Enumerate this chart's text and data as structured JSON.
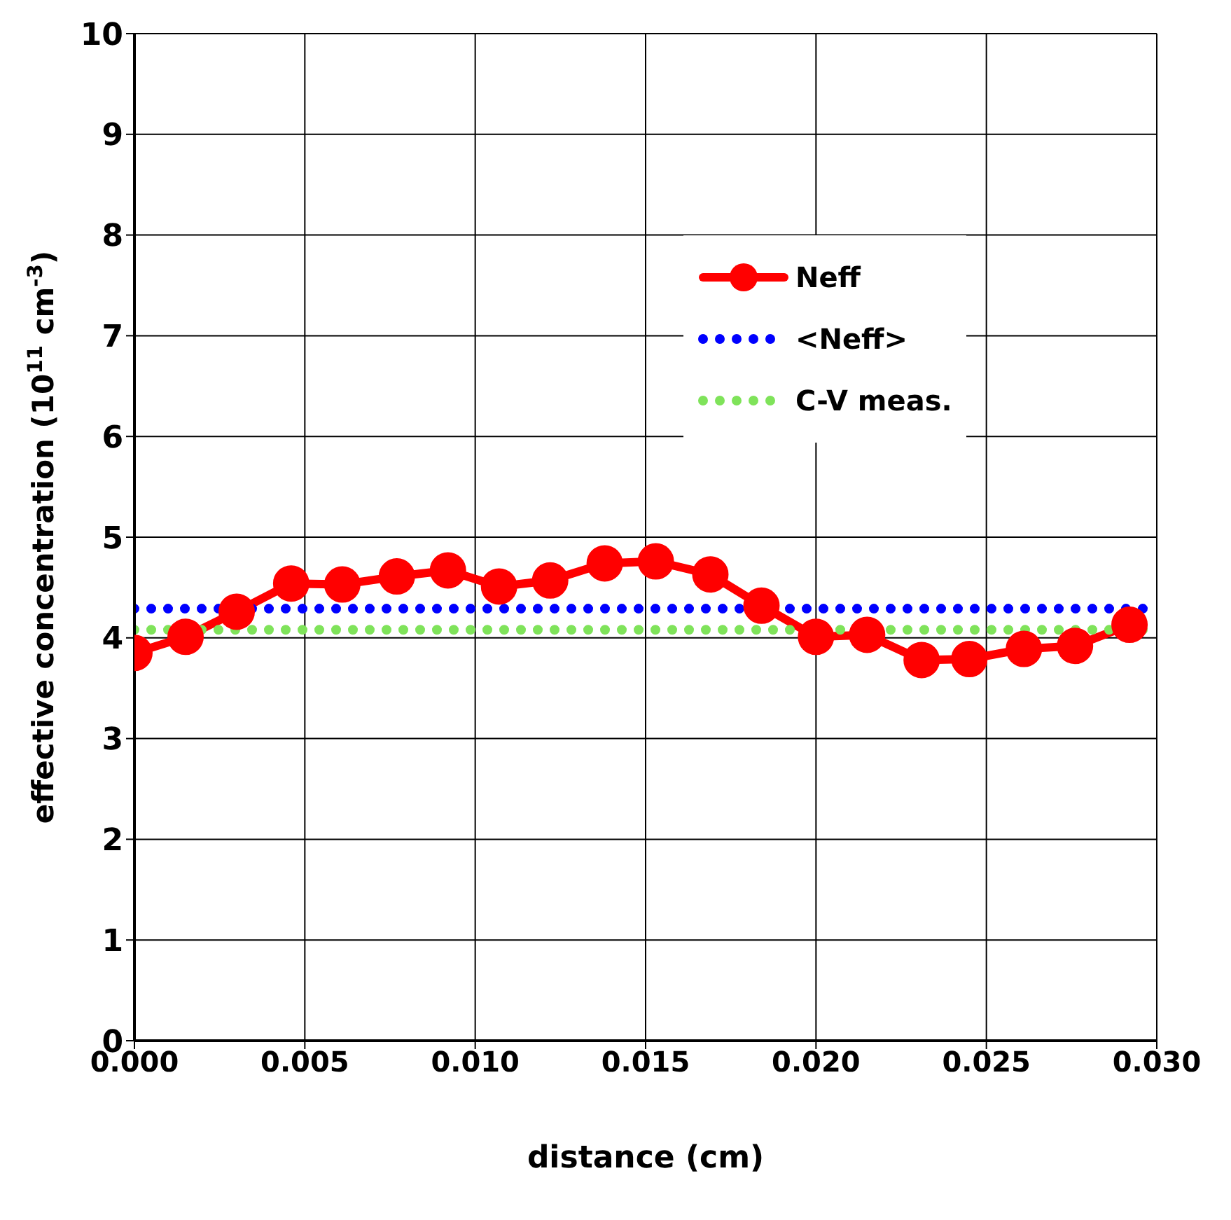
{
  "chart_data": {
    "type": "line",
    "xlabel": "distance (cm)",
    "ylabel": "effective concentration (10$^{11}$ cm$^{-3}$)",
    "xlim": [
      0,
      0.03
    ],
    "ylim": [
      0,
      10
    ],
    "xticks": [
      {
        "value": 0,
        "label": "0.000"
      },
      {
        "value": 0.005,
        "label": "0.005"
      },
      {
        "value": 0.01,
        "label": "0.010"
      },
      {
        "value": 0.015,
        "label": "0.015"
      },
      {
        "value": 0.02,
        "label": "0.020"
      },
      {
        "value": 0.025,
        "label": "0.025"
      },
      {
        "value": 0.03,
        "label": "0.030"
      }
    ],
    "yticks": [
      0,
      1,
      2,
      3,
      4,
      5,
      6,
      7,
      8,
      9,
      10
    ],
    "grid": true,
    "legend": "right",
    "series": [
      {
        "name": "Neff",
        "color": "#ff0000",
        "marker": "circle",
        "line_style": "solid",
        "x": [
          0,
          0.0015,
          0.003,
          0.0046,
          0.0061,
          0.0077,
          0.0092,
          0.0107,
          0.0122,
          0.0138,
          0.0153,
          0.0169,
          0.0184,
          0.02,
          0.0215,
          0.0231,
          0.0245,
          0.0261,
          0.0276,
          0.0292
        ],
        "values": [
          3.85,
          4.01,
          4.26,
          4.54,
          4.53,
          4.61,
          4.67,
          4.51,
          4.57,
          4.74,
          4.76,
          4.63,
          4.32,
          4.01,
          4.03,
          3.78,
          3.79,
          3.89,
          3.92,
          4.13
        ]
      },
      {
        "name": "<Neff>",
        "color": "#0000ff",
        "marker": "none",
        "line_style": "dotted",
        "x": [
          0,
          0.03
        ],
        "values": [
          4.29,
          4.29
        ]
      },
      {
        "name": "C-V meas.",
        "color": "#7fe35a",
        "marker": "none",
        "line_style": "dotted",
        "x": [
          0,
          0.03
        ],
        "values": [
          4.08,
          4.08
        ]
      }
    ]
  }
}
